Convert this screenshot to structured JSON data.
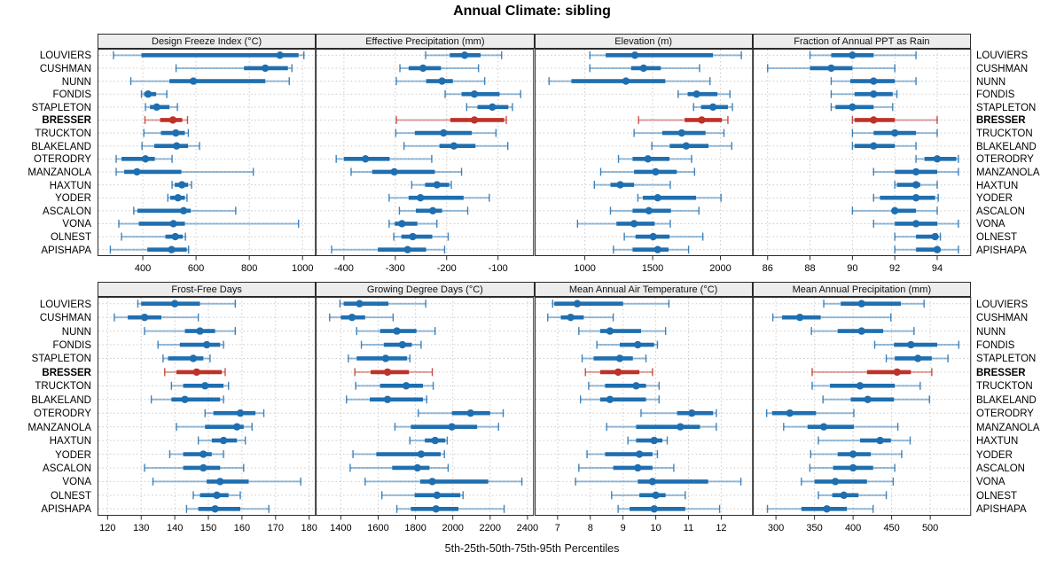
{
  "title": "Annual Climate: sibling",
  "caption": "5th-25th-50th-75th-95th Percentiles",
  "stations": [
    "LOUVIERS",
    "CUSHMAN",
    "NUNN",
    "FONDIS",
    "STAPLETON",
    "BRESSER",
    "TRUCKTON",
    "BLAKELAND",
    "OTERODRY",
    "MANZANOLA",
    "HAXTUN",
    "YODER",
    "ASCALON",
    "VONA",
    "OLNEST",
    "APISHAPA"
  ],
  "highlighted_station": "BRESSER",
  "colors": {
    "series": "#1f6fb0",
    "highlight": "#be3229",
    "grid": "#c9c9c9",
    "strip_bg": "#ededed",
    "border": "#2b2b2b"
  },
  "percentile_levels": [
    5,
    25,
    50,
    75,
    95
  ],
  "chart_data": [
    {
      "type": "scatter",
      "glyph": "5-25-50-75-95 percentile intervals (whisker, thick 25-75 bar, median dot)",
      "title": "Design Freeze Index (°C)",
      "xlim": [
        230,
        1050
      ],
      "xticks": [
        400,
        600,
        800,
        1000
      ],
      "values": [
        [
          290,
          395,
          915,
          985,
          1005
        ],
        [
          525,
          780,
          860,
          945,
          960
        ],
        [
          355,
          500,
          590,
          860,
          950
        ],
        [
          395,
          405,
          420,
          450,
          490
        ],
        [
          410,
          427,
          452,
          500,
          530
        ],
        [
          408,
          465,
          513,
          548,
          568
        ],
        [
          404,
          468,
          524,
          558,
          571
        ],
        [
          397,
          443,
          527,
          570,
          613
        ],
        [
          300,
          320,
          410,
          445,
          510
        ],
        [
          300,
          330,
          378,
          545,
          815
        ],
        [
          510,
          520,
          547,
          570,
          583
        ],
        [
          494,
          503,
          532,
          558,
          566
        ],
        [
          366,
          380,
          553,
          580,
          749
        ],
        [
          310,
          385,
          515,
          558,
          985
        ],
        [
          320,
          485,
          522,
          550,
          560
        ],
        [
          278,
          417,
          508,
          565,
          572
        ]
      ]
    },
    {
      "type": "scatter",
      "glyph": "5-25-50-75-95 percentile intervals",
      "title": "Effective Precipitation (mm)",
      "xlim": [
        -455,
        -30
      ],
      "xticks": [
        -400,
        -300,
        -200,
        -100
      ],
      "values": [
        [
          -241,
          -194,
          -165,
          -134,
          -93
        ],
        [
          -291,
          -274,
          -246,
          -211,
          -138
        ],
        [
          -298,
          -240,
          -209,
          -188,
          -126
        ],
        [
          -203,
          -171,
          -146,
          -97,
          -56
        ],
        [
          -161,
          -140,
          -111,
          -80,
          -72
        ],
        [
          -298,
          -193,
          -146,
          -88,
          -84
        ],
        [
          -299,
          -262,
          -206,
          -151,
          -104
        ],
        [
          -283,
          -214,
          -186,
          -144,
          -81
        ],
        [
          -415,
          -400,
          -358,
          -311,
          -229
        ],
        [
          -386,
          -345,
          -302,
          -223,
          -171
        ],
        [
          -268,
          -242,
          -219,
          -195,
          -191
        ],
        [
          -312,
          -274,
          -251,
          -167,
          -117
        ],
        [
          -292,
          -260,
          -227,
          -209,
          -159
        ],
        [
          -312,
          -301,
          -287,
          -257,
          -219
        ],
        [
          -303,
          -288,
          -266,
          -228,
          -197
        ],
        [
          -424,
          -334,
          -276,
          -240,
          -204
        ]
      ]
    },
    {
      "type": "scatter",
      "glyph": "5-25-50-75-95 percentile intervals",
      "title": "Elevation (m)",
      "xlim": [
        630,
        2240
      ],
      "xticks": [
        1000,
        1500,
        2000
      ],
      "values": [
        [
          1037,
          1154,
          1369,
          1945,
          2154
        ],
        [
          1037,
          1341,
          1433,
          1560,
          1846
        ],
        [
          736,
          901,
          1303,
          1593,
          1923
        ],
        [
          1688,
          1758,
          1824,
          1978,
          2070
        ],
        [
          1802,
          1857,
          1945,
          2055,
          2088
        ],
        [
          1396,
          1736,
          1862,
          2011,
          2055
        ],
        [
          1363,
          1571,
          1714,
          1890,
          2026
        ],
        [
          1494,
          1626,
          1747,
          1912,
          2083
        ],
        [
          1248,
          1352,
          1465,
          1624,
          1787
        ],
        [
          1117,
          1363,
          1522,
          1678,
          1809
        ],
        [
          1070,
          1189,
          1261,
          1363,
          1630
        ],
        [
          1391,
          1428,
          1537,
          1820,
          2004
        ],
        [
          1189,
          1352,
          1472,
          1635,
          1841
        ],
        [
          946,
          1233,
          1363,
          1515,
          1630
        ],
        [
          1291,
          1374,
          1504,
          1624,
          1870
        ],
        [
          1211,
          1352,
          1537,
          1617,
          1765
        ]
      ]
    },
    {
      "type": "scatter",
      "glyph": "5-25-50-75-95 percentile intervals",
      "title": "Fraction of Annual PPT as Rain",
      "xlim": [
        85.3,
        95.6
      ],
      "xticks": [
        86,
        88,
        90,
        92,
        94
      ],
      "values": [
        [
          88,
          89,
          90,
          91,
          93
        ],
        [
          86,
          88,
          89,
          90,
          92
        ],
        [
          89,
          89.9,
          91,
          92,
          93
        ],
        [
          89,
          90.1,
          91,
          91.9,
          92.1
        ],
        [
          89,
          89.2,
          90,
          91,
          91.9
        ],
        [
          90,
          90.1,
          91,
          92,
          94
        ],
        [
          90,
          91,
          92,
          93,
          94
        ],
        [
          90,
          90.1,
          91,
          92,
          93
        ],
        [
          93,
          93.4,
          94,
          94.9,
          95
        ],
        [
          91,
          92,
          93,
          94,
          95
        ],
        [
          92,
          92.1,
          93,
          93.2,
          94
        ],
        [
          91,
          91.3,
          93,
          93.9,
          94.05
        ],
        [
          90,
          91.9,
          92,
          93,
          94
        ],
        [
          91,
          92,
          93,
          94,
          95
        ],
        [
          92,
          93,
          93.9,
          94,
          94.15
        ],
        [
          92,
          93,
          94,
          94.1,
          95
        ]
      ]
    },
    {
      "type": "scatter",
      "glyph": "5-25-50-75-95 percentile intervals",
      "title": "Frost-Free Days",
      "xlim": [
        117,
        182
      ],
      "xticks": [
        120,
        130,
        140,
        150,
        160,
        170,
        180
      ],
      "values": [
        [
          129,
          130,
          140,
          147.5,
          158
        ],
        [
          122,
          126,
          131,
          136,
          147
        ],
        [
          131,
          143,
          147.5,
          152,
          158
        ],
        [
          135,
          141.5,
          149.5,
          153.5,
          154.5
        ],
        [
          136.5,
          138,
          145.5,
          148.5,
          150.5
        ],
        [
          137,
          140.5,
          146.5,
          154,
          155
        ],
        [
          139,
          142.5,
          149,
          154.5,
          156
        ],
        [
          133,
          139,
          143,
          153.5,
          154.5
        ],
        [
          149,
          151.5,
          159.5,
          164,
          166.5
        ],
        [
          140.5,
          149,
          158.5,
          160.5,
          163
        ],
        [
          147,
          151,
          154.5,
          158.5,
          161
        ],
        [
          138.5,
          142.5,
          148.5,
          151,
          154.5
        ],
        [
          131,
          142.5,
          148.5,
          153.5,
          160.5
        ],
        [
          133.5,
          149.5,
          153.5,
          162,
          177.5
        ],
        [
          145.5,
          147.5,
          152.5,
          156,
          159.5
        ],
        [
          143.5,
          147,
          152,
          159.5,
          168
        ]
      ]
    },
    {
      "type": "scatter",
      "glyph": "5-25-50-75-95 percentile intervals",
      "title": "Growing Degree Days (°C)",
      "xlim": [
        1265,
        2435
      ],
      "xticks": [
        1400,
        1600,
        1800,
        2000,
        2200,
        2400
      ],
      "values": [
        [
          1395,
          1415,
          1500,
          1655,
          1855
        ],
        [
          1340,
          1400,
          1460,
          1530,
          1680
        ],
        [
          1485,
          1610,
          1700,
          1805,
          1905
        ],
        [
          1510,
          1630,
          1730,
          1780,
          1830
        ],
        [
          1440,
          1485,
          1640,
          1755,
          1770
        ],
        [
          1475,
          1560,
          1650,
          1765,
          1890
        ],
        [
          1480,
          1610,
          1750,
          1840,
          1895
        ],
        [
          1430,
          1555,
          1650,
          1840,
          1860
        ],
        [
          1815,
          1995,
          2095,
          2200,
          2270
        ],
        [
          1690,
          1775,
          1995,
          2130,
          2245
        ],
        [
          1770,
          1850,
          1905,
          1960,
          1970
        ],
        [
          1465,
          1590,
          1830,
          1935,
          1955
        ],
        [
          1450,
          1675,
          1810,
          1875,
          1975
        ],
        [
          1530,
          1825,
          1890,
          2190,
          2370
        ],
        [
          1620,
          1795,
          1915,
          2040,
          2055
        ],
        [
          1700,
          1775,
          1910,
          2030,
          2275
        ]
      ]
    },
    {
      "type": "scatter",
      "glyph": "5-25-50-75-95 percentile intervals",
      "title": "Mean Annual Air Temperature (°C)",
      "xlim": [
        6.3,
        12.97
      ],
      "xticks": [
        7,
        8,
        9,
        10,
        11,
        12
      ],
      "values": [
        [
          6.85,
          6.9,
          7.6,
          9.0,
          10.4
        ],
        [
          6.7,
          7.1,
          7.4,
          7.8,
          8.7
        ],
        [
          7.65,
          8.3,
          8.6,
          9.55,
          10.3
        ],
        [
          8.2,
          8.9,
          9.45,
          9.95,
          10.05
        ],
        [
          7.75,
          8.1,
          8.9,
          9.3,
          9.7
        ],
        [
          7.85,
          8.3,
          8.85,
          9.5,
          9.9
        ],
        [
          7.95,
          8.45,
          9.4,
          9.7,
          10.1
        ],
        [
          7.7,
          8.3,
          8.6,
          9.7,
          10.1
        ],
        [
          9.55,
          10.65,
          11.1,
          11.75,
          11.85
        ],
        [
          8.5,
          9.4,
          10.75,
          11.35,
          11.85
        ],
        [
          9.15,
          9.4,
          9.95,
          10.2,
          10.35
        ],
        [
          7.9,
          8.45,
          9.5,
          9.9,
          10.05
        ],
        [
          7.65,
          8.7,
          9.45,
          9.9,
          10.55
        ],
        [
          7.55,
          9.45,
          9.9,
          11.6,
          12.6
        ],
        [
          8.65,
          9.5,
          10.0,
          10.3,
          10.9
        ],
        [
          8.85,
          9.2,
          9.95,
          10.9,
          11.95
        ]
      ]
    },
    {
      "type": "scatter",
      "glyph": "5-25-50-75-95 percentile intervals",
      "title": "Mean Annual Precipitation (mm)",
      "xlim": [
        270,
        553
      ],
      "xticks": [
        300,
        350,
        400,
        450,
        500
      ],
      "values": [
        [
          362,
          384,
          411,
          462,
          492
        ],
        [
          296,
          308,
          331,
          358,
          449
        ],
        [
          346,
          380,
          411,
          439,
          479
        ],
        [
          428,
          453,
          475,
          509,
          537
        ],
        [
          443,
          454,
          484,
          502,
          523
        ],
        [
          347,
          418,
          457,
          475,
          502
        ],
        [
          347,
          370,
          409,
          454,
          487
        ],
        [
          361,
          397,
          419,
          453,
          499
        ],
        [
          288,
          295,
          318,
          352,
          401
        ],
        [
          310,
          341,
          362,
          401,
          458
        ],
        [
          355,
          409,
          435,
          449,
          474
        ],
        [
          345,
          380,
          400,
          423,
          463
        ],
        [
          344,
          374,
          400,
          426,
          454
        ],
        [
          333,
          350,
          377,
          418,
          452
        ],
        [
          355,
          373,
          388,
          407,
          443
        ],
        [
          289,
          333,
          366,
          392,
          426
        ]
      ]
    }
  ]
}
